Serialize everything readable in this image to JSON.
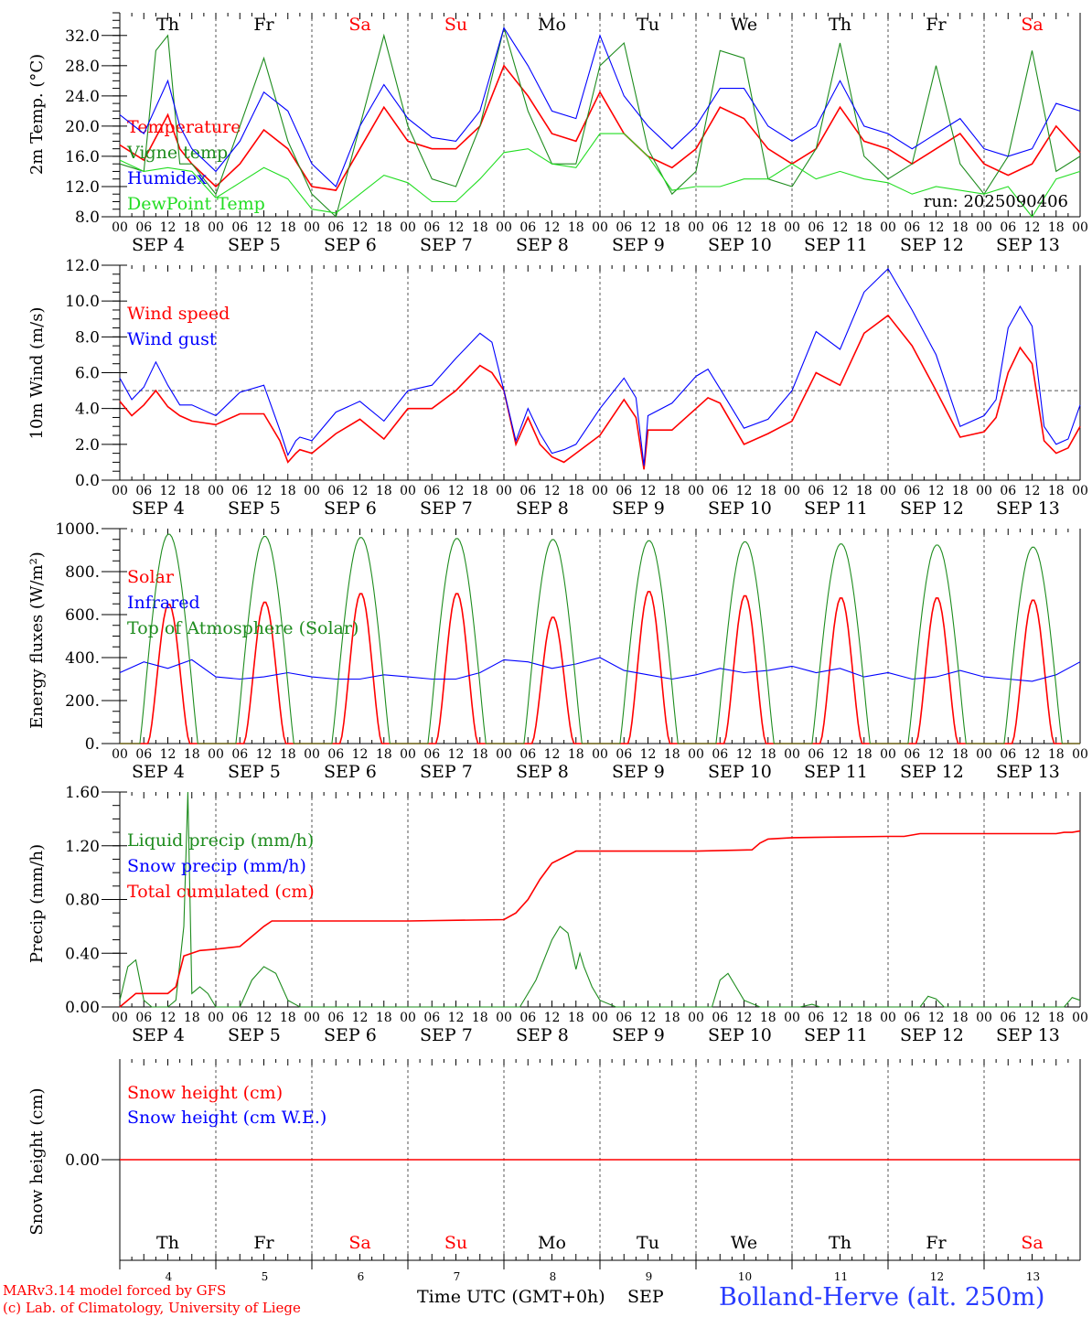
{
  "x_ticks": [
    "00",
    "06",
    "12",
    "18"
  ],
  "x_end_tick": "00",
  "date_labels": [
    "SEP  4",
    "SEP  5",
    "SEP  6",
    "SEP  7",
    "SEP  8",
    "SEP  9",
    "SEP 10",
    "SEP 11",
    "SEP 12",
    "SEP 13"
  ],
  "weekdays": [
    "Th",
    "Fr",
    "Sa",
    "Su",
    "Mo",
    "Tu",
    "We",
    "Th",
    "Fr",
    "Sa"
  ],
  "weekday_colors": [
    "#000000",
    "#000000",
    "#ff0000",
    "#ff0000",
    "#000000",
    "#000000",
    "#000000",
    "#000000",
    "#000000",
    "#ff0000"
  ],
  "bottom_day_numbers": [
    "4",
    "5",
    "6",
    "7",
    "8",
    "9",
    "10",
    "11",
    "12",
    "13"
  ],
  "colors": {
    "red": "#ff0000",
    "green": "#1e8c1e",
    "blue": "#0000ff",
    "lightgreen": "#22dd22",
    "title_blue": "#2a3cff"
  },
  "footer": {
    "model_line": "MARv3.14 model forced by GFS",
    "copyright_line": "(c) Lab. of Climatology, University of Liege",
    "xlabel": "Time UTC (GMT+0h)",
    "month": "SEP",
    "station": "Bolland-Herve (alt. 250m)"
  },
  "chart_data": [
    {
      "type": "line",
      "ylabel": "2m Temp. (°C)",
      "ytick_labels": [
        "8.0",
        "12.0",
        "16.0",
        "20.0",
        "24.0",
        "28.0",
        "32.0"
      ],
      "ylim": [
        8,
        35
      ],
      "x_unit": "hours since SEP 4 00 UTC",
      "run_label": "run: 2025090406",
      "weekday_row": "top",
      "series": [
        {
          "name": "Temperature",
          "color": "red",
          "x": [
            0,
            6,
            12,
            15,
            18,
            24,
            30,
            36,
            42,
            48,
            54,
            60,
            66,
            72,
            78,
            84,
            90,
            96,
            102,
            108,
            114,
            120,
            126,
            132,
            138,
            144,
            150,
            156,
            162,
            168,
            174,
            180,
            186,
            192,
            198,
            204,
            210,
            216,
            222,
            228,
            234,
            240
          ],
          "values": [
            17.5,
            15.5,
            21.5,
            17,
            15,
            12,
            15,
            19.5,
            17,
            12,
            11.5,
            17,
            22.5,
            18,
            17,
            17,
            20,
            28,
            24,
            19,
            18,
            24.5,
            19,
            16,
            14.5,
            17,
            22.5,
            21,
            17,
            15,
            17,
            22.5,
            18,
            17,
            15,
            17,
            19,
            15,
            13.5,
            15,
            20,
            16.5
          ]
        },
        {
          "name": "Vigne temp",
          "color": "green",
          "x": [
            0,
            6,
            9,
            12,
            15,
            18,
            24,
            30,
            36,
            42,
            48,
            54,
            60,
            66,
            72,
            78,
            84,
            90,
            96,
            102,
            108,
            114,
            120,
            126,
            132,
            138,
            144,
            150,
            156,
            162,
            168,
            174,
            180,
            186,
            192,
            198,
            204,
            210,
            216,
            222,
            228,
            234,
            240
          ],
          "values": [
            15,
            14,
            30,
            32,
            15,
            15,
            11,
            20,
            29,
            18,
            11,
            8,
            20,
            32,
            20,
            13,
            12,
            20,
            33,
            22,
            15,
            15,
            28,
            31,
            17,
            11,
            14,
            30,
            29,
            13,
            12,
            17,
            31,
            16,
            13,
            15,
            28,
            15,
            11,
            16,
            30,
            14,
            16
          ]
        },
        {
          "name": "Humidex",
          "color": "blue",
          "x": [
            0,
            6,
            12,
            15,
            18,
            24,
            30,
            36,
            42,
            48,
            54,
            60,
            66,
            72,
            78,
            84,
            90,
            96,
            102,
            108,
            114,
            120,
            126,
            132,
            138,
            144,
            150,
            156,
            162,
            168,
            174,
            180,
            186,
            192,
            198,
            204,
            210,
            216,
            222,
            228,
            234,
            240
          ],
          "values": [
            21.5,
            19,
            26,
            20,
            17,
            14,
            18,
            24.5,
            22,
            15,
            12,
            20,
            25.5,
            21,
            18.5,
            18,
            22,
            33,
            28,
            22,
            21,
            32,
            24,
            20,
            17,
            20,
            25,
            25,
            20,
            18,
            20,
            26,
            20,
            19,
            17,
            19,
            21,
            17,
            16,
            17,
            23,
            22
          ]
        },
        {
          "name": "DewPoint Temp",
          "color": "lightgreen",
          "x": [
            0,
            6,
            12,
            18,
            24,
            30,
            36,
            42,
            48,
            54,
            60,
            66,
            72,
            78,
            84,
            90,
            96,
            102,
            108,
            114,
            120,
            126,
            132,
            138,
            144,
            150,
            156,
            162,
            168,
            174,
            180,
            186,
            192,
            198,
            204,
            210,
            216,
            222,
            228,
            234,
            240
          ],
          "values": [
            15.5,
            14,
            14.5,
            14,
            10.5,
            12.5,
            14.5,
            13,
            9,
            8.5,
            11,
            13.5,
            12.5,
            10,
            10,
            13,
            16.5,
            17,
            15,
            14.5,
            19,
            19,
            16,
            11.5,
            12,
            12,
            13,
            13,
            15,
            13,
            14,
            13,
            12.5,
            11,
            12,
            11.5,
            11,
            12,
            8,
            13,
            14
          ]
        }
      ]
    },
    {
      "type": "line",
      "ylabel": "10m Wind (m/s)",
      "ytick_labels": [
        "0.0",
        "2.0",
        "4.0",
        "6.0",
        "8.0",
        "10.0",
        "12.0"
      ],
      "ylim": [
        0,
        12
      ],
      "reference_line": 5,
      "series": [
        {
          "name": "Wind speed",
          "color": "red",
          "x": [
            0,
            3,
            6,
            9,
            12,
            15,
            18,
            24,
            30,
            36,
            40,
            42,
            44,
            45,
            48,
            54,
            60,
            66,
            72,
            78,
            84,
            90,
            93,
            96,
            99,
            102,
            105,
            108,
            111,
            114,
            120,
            126,
            129,
            131,
            132,
            138,
            144,
            147,
            150,
            156,
            162,
            168,
            174,
            180,
            186,
            192,
            198,
            204,
            210,
            216,
            219,
            222,
            225,
            228,
            231,
            234,
            237,
            240
          ],
          "values": [
            4.4,
            3.6,
            4.2,
            5,
            4.1,
            3.6,
            3.3,
            3.1,
            3.7,
            3.7,
            2.2,
            1,
            1.5,
            1.7,
            1.5,
            2.6,
            3.4,
            2.3,
            4,
            4,
            5,
            6.4,
            6,
            5,
            2,
            3.5,
            2,
            1.3,
            1,
            1.5,
            2.5,
            4.5,
            3.5,
            0.6,
            2.8,
            2.8,
            4,
            4.6,
            4.3,
            2,
            2.6,
            3.3,
            6,
            5.3,
            8.2,
            9.2,
            7.5,
            5,
            2.4,
            2.7,
            3.5,
            6,
            7.4,
            6.5,
            2.2,
            1.5,
            1.8,
            3
          ]
        },
        {
          "name": "Wind gust",
          "color": "blue",
          "x": [
            0,
            3,
            6,
            9,
            12,
            15,
            18,
            24,
            30,
            36,
            40,
            42,
            44,
            45,
            48,
            54,
            60,
            66,
            72,
            78,
            84,
            90,
            93,
            96,
            99,
            102,
            105,
            108,
            111,
            114,
            120,
            126,
            129,
            131,
            132,
            138,
            144,
            147,
            150,
            156,
            162,
            168,
            174,
            180,
            186,
            192,
            198,
            204,
            210,
            216,
            219,
            222,
            225,
            228,
            231,
            234,
            237,
            240
          ],
          "values": [
            5.7,
            4.5,
            5.2,
            6.6,
            5.3,
            4.2,
            4.2,
            3.6,
            4.9,
            5.3,
            2.8,
            1.4,
            2.2,
            2.4,
            2.2,
            3.8,
            4.4,
            3.3,
            5,
            5.3,
            6.8,
            8.2,
            7.7,
            5,
            2.2,
            4,
            2.6,
            1.5,
            1.7,
            2,
            4,
            5.7,
            4.6,
            0.8,
            3.6,
            4.3,
            5.8,
            6.2,
            5.1,
            2.9,
            3.4,
            5,
            8.3,
            7.3,
            10.5,
            11.8,
            9.5,
            7,
            3,
            3.6,
            4.5,
            8.5,
            9.7,
            8.6,
            3,
            2,
            2.3,
            4.2
          ]
        }
      ]
    },
    {
      "type": "line",
      "ylabel": "Energy fluxes (W/m²)",
      "ytick_labels": [
        "0.",
        "200.",
        "400.",
        "600.",
        "800.",
        "1000."
      ],
      "ylim": [
        0,
        1000
      ],
      "series": [
        {
          "name": "Solar",
          "color": "red",
          "peaks": [
            650,
            660,
            700,
            700,
            590,
            710,
            690,
            680,
            680,
            670
          ]
        },
        {
          "name": "Infrared",
          "color": "blue",
          "x": [
            0,
            6,
            12,
            18,
            24,
            30,
            36,
            42,
            48,
            54,
            60,
            66,
            72,
            78,
            84,
            90,
            96,
            102,
            108,
            114,
            120,
            126,
            132,
            138,
            144,
            150,
            156,
            162,
            168,
            174,
            180,
            186,
            192,
            198,
            204,
            210,
            216,
            222,
            228,
            234,
            240
          ],
          "values": [
            330,
            380,
            350,
            390,
            310,
            300,
            310,
            330,
            310,
            300,
            300,
            320,
            310,
            300,
            300,
            330,
            390,
            380,
            350,
            370,
            400,
            340,
            320,
            300,
            320,
            350,
            330,
            340,
            360,
            330,
            350,
            310,
            330,
            300,
            310,
            340,
            310,
            300,
            290,
            320,
            380
          ]
        },
        {
          "name": "Top of Atmosphere (Solar)",
          "color": "green",
          "peaks": [
            975,
            965,
            960,
            955,
            950,
            945,
            940,
            930,
            925,
            915
          ]
        }
      ]
    },
    {
      "type": "line",
      "ylabel": "Precip (mm/h)",
      "ytick_labels": [
        "0.00",
        "0.40",
        "0.80",
        "1.20",
        "1.60"
      ],
      "ylim": [
        0,
        1.6
      ],
      "series": [
        {
          "name": "Liquid precip (mm/h)",
          "color": "green",
          "x": [
            0,
            2,
            4,
            6,
            8,
            10,
            12,
            14,
            16,
            17,
            18,
            20,
            22,
            24,
            30,
            33,
            36,
            39,
            42,
            45,
            48,
            96,
            100,
            104,
            108,
            110,
            112,
            114,
            115,
            116,
            118,
            120,
            124,
            148,
            150,
            152,
            154,
            156,
            160,
            170,
            173,
            175,
            200,
            202,
            204,
            206,
            236,
            238,
            240
          ],
          "values": [
            0.05,
            0.3,
            0.35,
            0.05,
            0,
            0,
            0,
            0.05,
            0.6,
            1.6,
            0.1,
            0.15,
            0.1,
            0,
            0,
            0.2,
            0.3,
            0.25,
            0.05,
            0,
            0,
            0,
            0,
            0.2,
            0.5,
            0.6,
            0.55,
            0.28,
            0.4,
            0.3,
            0.15,
            0.05,
            0,
            0,
            0.2,
            0.25,
            0.15,
            0.05,
            0,
            0,
            0.02,
            0,
            0,
            0.08,
            0.06,
            0,
            0,
            0.07,
            0.05
          ]
        },
        {
          "name": "Snow precip (mm/h)",
          "color": "blue",
          "values": []
        },
        {
          "name": "Total cumulated (cm)",
          "color": "red",
          "x": [
            0,
            4,
            6,
            12,
            14,
            16,
            18,
            20,
            24,
            30,
            34,
            36,
            38,
            42,
            48,
            72,
            96,
            99,
            102,
            105,
            108,
            112,
            114,
            120,
            144,
            158,
            160,
            162,
            168,
            192,
            196,
            198,
            200,
            216,
            234,
            236,
            238,
            240
          ],
          "values": [
            0,
            0.1,
            0.1,
            0.1,
            0.15,
            0.38,
            0.4,
            0.42,
            0.43,
            0.45,
            0.55,
            0.6,
            0.64,
            0.64,
            0.64,
            0.64,
            0.65,
            0.7,
            0.8,
            0.95,
            1.07,
            1.13,
            1.16,
            1.16,
            1.16,
            1.17,
            1.22,
            1.25,
            1.26,
            1.27,
            1.27,
            1.28,
            1.29,
            1.29,
            1.29,
            1.3,
            1.3,
            1.31
          ]
        }
      ]
    },
    {
      "type": "line",
      "ylabel": "Snow height (cm)",
      "ytick_labels": [
        "0.00"
      ],
      "weekday_row": "bottom",
      "series": [
        {
          "name": "Snow height (cm)",
          "color": "red",
          "x": [
            0,
            240
          ],
          "values": [
            0,
            0
          ]
        },
        {
          "name": "Snow height (cm W.E.)",
          "color": "blue",
          "values": []
        }
      ]
    }
  ]
}
